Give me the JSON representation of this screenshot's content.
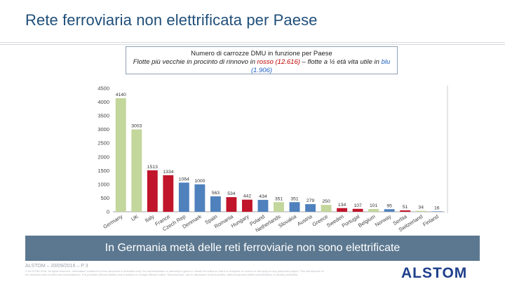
{
  "title": "Rete ferroviaria non elettrificata per Paese",
  "caption": {
    "line1": "Numero di carrozze DMU in funzione per Paese",
    "line2_prefix": "Flotte più vecchie in procinto di rinnovo in ",
    "line2_red": "rosso (12.616)",
    "line2_mid": " – flotte a ½ età vita utile in ",
    "line2_blue": "blu (1.906)"
  },
  "colors": {
    "green": "#c3d69b",
    "red": "#c0152a",
    "blue": "#4f81bd",
    "banner": "#5c7890"
  },
  "chart_data": {
    "type": "bar",
    "title": "Numero di carrozze DMU in funzione per Paese",
    "xlabel": "",
    "ylabel": "",
    "ylim": [
      0,
      4500
    ],
    "yticks": [
      0,
      500,
      1000,
      1500,
      2000,
      2500,
      3000,
      3500,
      4000,
      4500
    ],
    "categories": [
      "Germany",
      "UK",
      "Italy",
      "France",
      "Czech Rep",
      "Denmark",
      "Spain",
      "Romania",
      "Hungary",
      "Poland",
      "Netherlands",
      "Slovakia",
      "Austria",
      "Greece",
      "Sweden",
      "Portugal",
      "Belgium",
      "Norway",
      "Serbia",
      "Switzerland",
      "Finland"
    ],
    "values": [
      4140,
      3003,
      1513,
      1334,
      1064,
      1000,
      563,
      534,
      442,
      434,
      351,
      351,
      279,
      250,
      134,
      107,
      101,
      95,
      51,
      34,
      16
    ],
    "bar_colors": [
      "green",
      "green",
      "red",
      "red",
      "blue",
      "blue",
      "blue",
      "red",
      "red",
      "blue",
      "green",
      "blue",
      "blue",
      "green",
      "red",
      "red",
      "green",
      "blue",
      "red",
      "green",
      "blue"
    ]
  },
  "banner": "In Germania metà delle reti ferroviarie non sono elettrificate",
  "footer": {
    "ref": "ALSTOM – 20/09/2016 – P 3",
    "note": "© ALSTOM 2016. All rights reserved. Information contained in this document is indicative only. No representation or warranty is given or should be relied on that it is complete or correct or will apply to any particular project. This will depend on the technical and commercial circumstances. It is provided without liability and is subject to change without notice. Reproduction, use or disclosure to third parties, without express written authorisation, is strictly prohibited."
  },
  "logo": "ALSTOM"
}
